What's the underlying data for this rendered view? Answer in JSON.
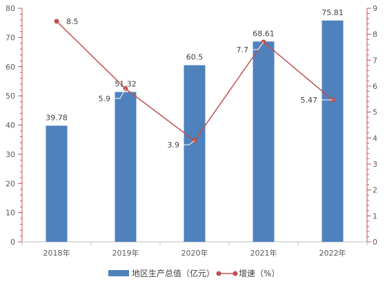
{
  "chart_data": {
    "type": "bar",
    "categories": [
      "2018年",
      "2019年",
      "2020年",
      "2021年",
      "2022年"
    ],
    "series": [
      {
        "name": "地区生产总值（亿元）",
        "type": "bar",
        "axis": "left",
        "values": [
          39.78,
          51.32,
          60.5,
          68.61,
          75.81
        ],
        "labels": [
          "39.78",
          "51.32",
          "60.5",
          "68.61",
          "75.81"
        ],
        "color": "#4f81bd"
      },
      {
        "name": "增速（%）",
        "type": "line",
        "axis": "right",
        "values": [
          8.5,
          5.9,
          3.9,
          7.7,
          5.47
        ],
        "labels": [
          "8.5",
          "5.9",
          "3.9",
          "7.7",
          "5.47"
        ],
        "color": "#c0504d"
      }
    ],
    "y_left": {
      "min": 0,
      "max": 80,
      "step": 10,
      "ticks": [
        "0",
        "10",
        "20",
        "30",
        "40",
        "50",
        "60",
        "70",
        "80"
      ]
    },
    "y_right": {
      "min": 0,
      "max": 9,
      "step": 1,
      "ticks": [
        "0",
        "1",
        "2",
        "3",
        "4",
        "5",
        "6",
        "7",
        "8",
        "9"
      ]
    },
    "legend": "bottom",
    "grid": false,
    "title": "",
    "xlabel": "",
    "ylabel": ""
  },
  "colors": {
    "bar": "#4f81bd",
    "line": "#c0504d",
    "axis": "#c0504d",
    "text": "#595959",
    "leader": "#ffffff"
  }
}
